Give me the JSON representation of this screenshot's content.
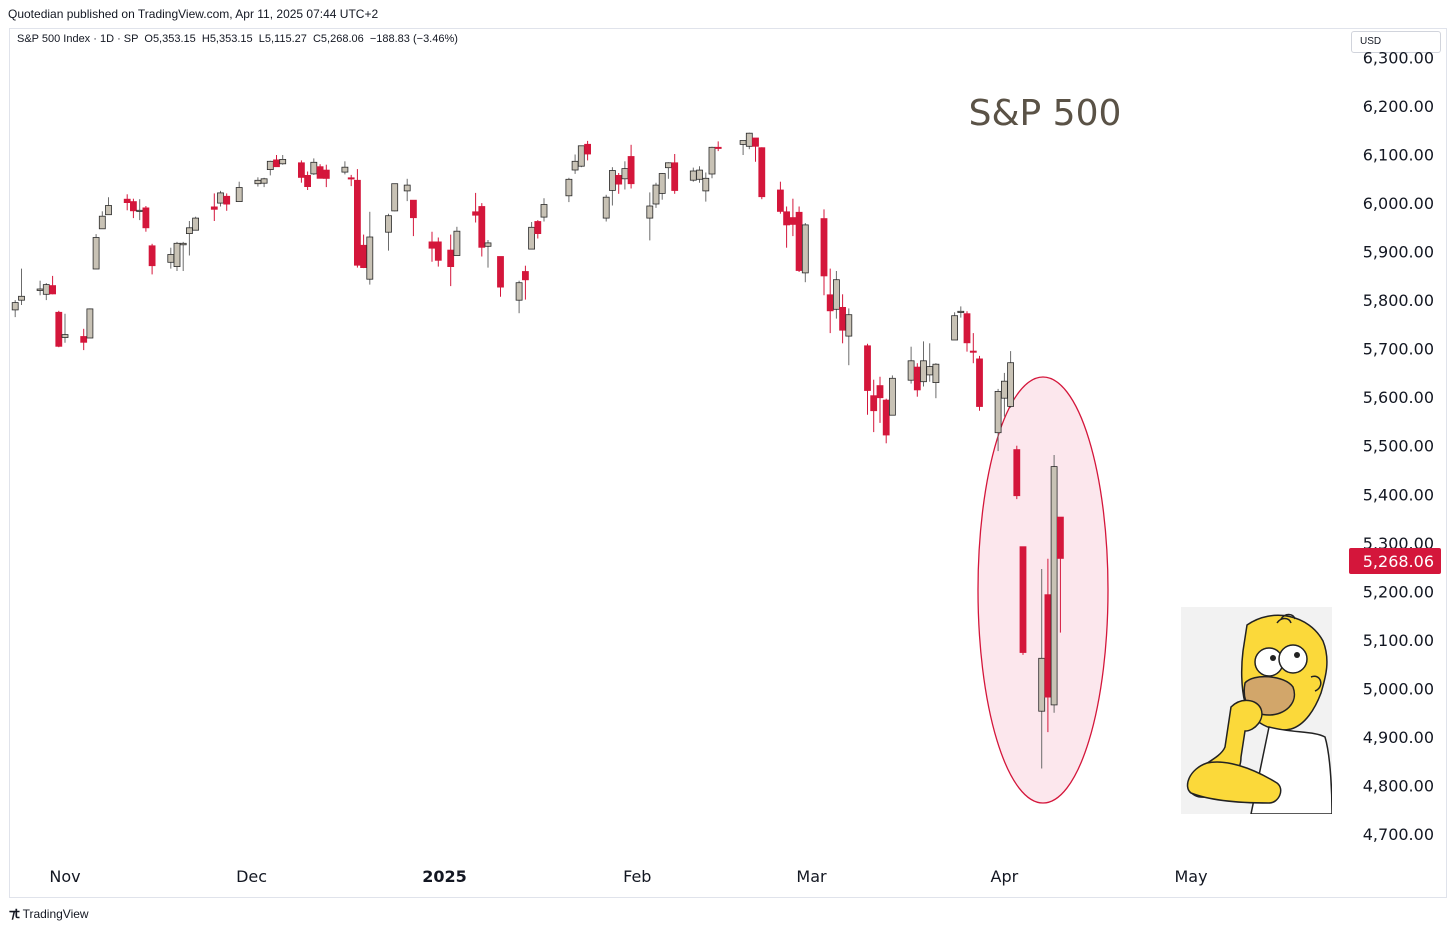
{
  "publisher_line": "Quotedian published on TradingView.com, Apr 11, 2025 07:44 UTC+2",
  "legend": "S&P 500 Index · 1D · SP  O5,353.15  H5,353.15  L5,115.27  C5,268.06  −188.83 (−3.46%)",
  "currency": "USD",
  "footer": "TradingView",
  "colors": {
    "up": "#c8c2b5",
    "down": "#d4163b",
    "text": "#131722",
    "title": "#5a5246"
  },
  "chart_data": {
    "type": "candlestick",
    "title": "S&P 500",
    "ylim": [
      4650,
      6320
    ],
    "y_ticks": [
      4700,
      4800,
      4900,
      5000,
      5100,
      5200,
      5300,
      5400,
      5500,
      5600,
      5700,
      5800,
      5900,
      6000,
      6100,
      6200,
      6300
    ],
    "y_tick_labels": [
      "4,700.00",
      "4,800.00",
      "4,900.00",
      "5,000.00",
      "5,100.00",
      "5,200.00",
      "5,300.00",
      "5,400.00",
      "5,500.00",
      "5,600.00",
      "5,700.00",
      "5,800.00",
      "5,900.00",
      "6,000.00",
      "6,100.00",
      "6,200.00",
      "6,300.00"
    ],
    "x_labels": [
      {
        "label": "Nov",
        "date": "2024-11-01"
      },
      {
        "label": "Dec",
        "date": "2024-12-01"
      },
      {
        "label": "2025",
        "date": "2025-01-01"
      },
      {
        "label": "Feb",
        "date": "2025-02-01"
      },
      {
        "label": "Mar",
        "date": "2025-03-01"
      },
      {
        "label": "Apr",
        "date": "2025-04-01"
      },
      {
        "label": "May",
        "date": "2025-05-01"
      }
    ],
    "last_price_label": "5,268.06",
    "highlight": "ellipse around Apr 2025 candles",
    "candles": [
      {
        "date": "2024-10-24",
        "o": 5780,
        "h": 5800,
        "l": 5765,
        "c": 5795
      },
      {
        "date": "2024-10-25",
        "o": 5800,
        "h": 5865,
        "l": 5790,
        "c": 5808
      },
      {
        "date": "2024-10-28",
        "o": 5820,
        "h": 5840,
        "l": 5810,
        "c": 5823
      },
      {
        "date": "2024-10-29",
        "o": 5812,
        "h": 5835,
        "l": 5800,
        "c": 5832
      },
      {
        "date": "2024-10-30",
        "o": 5830,
        "h": 5850,
        "l": 5812,
        "c": 5813
      },
      {
        "date": "2024-10-31",
        "o": 5775,
        "h": 5778,
        "l": 5703,
        "c": 5705
      },
      {
        "date": "2024-11-01",
        "o": 5723,
        "h": 5772,
        "l": 5712,
        "c": 5729
      },
      {
        "date": "2024-11-04",
        "o": 5725,
        "h": 5741,
        "l": 5697,
        "c": 5713
      },
      {
        "date": "2024-11-05",
        "o": 5722,
        "h": 5783,
        "l": 5722,
        "c": 5782
      },
      {
        "date": "2024-11-06",
        "o": 5864,
        "h": 5936,
        "l": 5864,
        "c": 5929
      },
      {
        "date": "2024-11-07",
        "o": 5947,
        "h": 5983,
        "l": 5947,
        "c": 5973
      },
      {
        "date": "2024-11-08",
        "o": 5976,
        "h": 6012,
        "l": 5976,
        "c": 5995
      },
      {
        "date": "2024-11-11",
        "o": 6008,
        "h": 6018,
        "l": 5985,
        "c": 6001
      },
      {
        "date": "2024-11-12",
        "o": 6003,
        "h": 6009,
        "l": 5969,
        "c": 5984
      },
      {
        "date": "2024-11-13",
        "o": 5985,
        "h": 6008,
        "l": 5965,
        "c": 5985
      },
      {
        "date": "2024-11-14",
        "o": 5990,
        "h": 5994,
        "l": 5941,
        "c": 5949
      },
      {
        "date": "2024-11-15",
        "o": 5912,
        "h": 5916,
        "l": 5853,
        "c": 5871
      },
      {
        "date": "2024-11-18",
        "o": 5878,
        "h": 5908,
        "l": 5865,
        "c": 5894
      },
      {
        "date": "2024-11-19",
        "o": 5869,
        "h": 5920,
        "l": 5860,
        "c": 5917
      },
      {
        "date": "2024-11-20",
        "o": 5914,
        "h": 5920,
        "l": 5860,
        "c": 5917
      },
      {
        "date": "2024-11-21",
        "o": 5937,
        "h": 5963,
        "l": 5892,
        "c": 5949
      },
      {
        "date": "2024-11-22",
        "o": 5944,
        "h": 5972,
        "l": 5944,
        "c": 5969
      },
      {
        "date": "2024-11-25",
        "o": 5992,
        "h": 6020,
        "l": 5963,
        "c": 5987
      },
      {
        "date": "2024-11-26",
        "o": 6000,
        "h": 6025,
        "l": 5993,
        "c": 6021
      },
      {
        "date": "2024-11-27",
        "o": 6014,
        "h": 6020,
        "l": 5984,
        "c": 5998
      },
      {
        "date": "2024-11-29",
        "o": 6003,
        "h": 6044,
        "l": 6003,
        "c": 6032
      },
      {
        "date": "2024-12-02",
        "o": 6040,
        "h": 6053,
        "l": 6034,
        "c": 6047
      },
      {
        "date": "2024-12-03",
        "o": 6041,
        "h": 6052,
        "l": 6033,
        "c": 6050
      },
      {
        "date": "2024-12-04",
        "o": 6069,
        "h": 6087,
        "l": 6057,
        "c": 6086
      },
      {
        "date": "2024-12-05",
        "o": 6089,
        "h": 6099,
        "l": 6075,
        "c": 6075
      },
      {
        "date": "2024-12-06",
        "o": 6081,
        "h": 6099,
        "l": 6079,
        "c": 6090
      },
      {
        "date": "2024-12-09",
        "o": 6083,
        "h": 6088,
        "l": 6042,
        "c": 6053
      },
      {
        "date": "2024-12-10",
        "o": 6057,
        "h": 6065,
        "l": 6027,
        "c": 6034
      },
      {
        "date": "2024-12-11",
        "o": 6060,
        "h": 6092,
        "l": 6058,
        "c": 6084
      },
      {
        "date": "2024-12-12",
        "o": 6075,
        "h": 6080,
        "l": 6051,
        "c": 6051
      },
      {
        "date": "2024-12-13",
        "o": 6068,
        "h": 6079,
        "l": 6033,
        "c": 6051
      },
      {
        "date": "2024-12-16",
        "o": 6064,
        "h": 6086,
        "l": 6059,
        "c": 6074
      },
      {
        "date": "2024-12-17",
        "o": 6052,
        "h": 6058,
        "l": 6035,
        "c": 6050
      },
      {
        "date": "2024-12-18",
        "o": 6047,
        "h": 6070,
        "l": 5867,
        "c": 5872
      },
      {
        "date": "2024-12-19",
        "o": 5913,
        "h": 5935,
        "l": 5866,
        "c": 5867
      },
      {
        "date": "2024-12-20",
        "o": 5843,
        "h": 5982,
        "l": 5832,
        "c": 5930
      },
      {
        "date": "2024-12-23",
        "o": 5940,
        "h": 5978,
        "l": 5902,
        "c": 5974
      },
      {
        "date": "2024-12-24",
        "o": 5984,
        "h": 6040,
        "l": 5983,
        "c": 6040
      },
      {
        "date": "2024-12-26",
        "o": 6025,
        "h": 6050,
        "l": 6004,
        "c": 6037
      },
      {
        "date": "2024-12-27",
        "o": 6006,
        "h": 6006,
        "l": 5932,
        "c": 5970
      },
      {
        "date": "2024-12-30",
        "o": 5920,
        "h": 5941,
        "l": 5879,
        "c": 5907
      },
      {
        "date": "2024-12-31",
        "o": 5920,
        "h": 5929,
        "l": 5869,
        "c": 5882
      },
      {
        "date": "2025-01-02",
        "o": 5903,
        "h": 5935,
        "l": 5829,
        "c": 5869
      },
      {
        "date": "2025-01-03",
        "o": 5892,
        "h": 5951,
        "l": 5892,
        "c": 5942
      },
      {
        "date": "2025-01-06",
        "o": 5982,
        "h": 6021,
        "l": 5960,
        "c": 5975
      },
      {
        "date": "2025-01-07",
        "o": 5993,
        "h": 6000,
        "l": 5890,
        "c": 5909
      },
      {
        "date": "2025-01-08",
        "o": 5911,
        "h": 5924,
        "l": 5867,
        "c": 5918
      },
      {
        "date": "2025-01-10",
        "o": 5890,
        "h": 5890,
        "l": 5807,
        "c": 5827
      },
      {
        "date": "2025-01-13",
        "o": 5800,
        "h": 5840,
        "l": 5773,
        "c": 5836
      },
      {
        "date": "2025-01-14",
        "o": 5859,
        "h": 5871,
        "l": 5801,
        "c": 5842
      },
      {
        "date": "2025-01-15",
        "o": 5905,
        "h": 5961,
        "l": 5905,
        "c": 5950
      },
      {
        "date": "2025-01-16",
        "o": 5962,
        "h": 5965,
        "l": 5927,
        "c": 5937
      },
      {
        "date": "2025-01-17",
        "o": 5971,
        "h": 6010,
        "l": 5962,
        "c": 5997
      },
      {
        "date": "2025-01-21",
        "o": 6015,
        "h": 6052,
        "l": 6002,
        "c": 6049
      },
      {
        "date": "2025-01-22",
        "o": 6068,
        "h": 6100,
        "l": 6060,
        "c": 6086
      },
      {
        "date": "2025-01-23",
        "o": 6076,
        "h": 6118,
        "l": 6074,
        "c": 6118
      },
      {
        "date": "2025-01-24",
        "o": 6121,
        "h": 6128,
        "l": 6088,
        "c": 6101
      },
      {
        "date": "2025-01-27",
        "o": 5969,
        "h": 6017,
        "l": 5962,
        "c": 6012
      },
      {
        "date": "2025-01-28",
        "o": 6026,
        "h": 6074,
        "l": 5995,
        "c": 6067
      },
      {
        "date": "2025-01-29",
        "o": 6057,
        "h": 6062,
        "l": 6019,
        "c": 6039
      },
      {
        "date": "2025-01-30",
        "o": 6050,
        "h": 6086,
        "l": 6028,
        "c": 6071
      },
      {
        "date": "2025-01-31",
        "o": 6096,
        "h": 6120,
        "l": 6030,
        "c": 6040
      },
      {
        "date": "2025-02-03",
        "o": 5969,
        "h": 6022,
        "l": 5923,
        "c": 5994
      },
      {
        "date": "2025-02-04",
        "o": 5998,
        "h": 6042,
        "l": 5990,
        "c": 6037
      },
      {
        "date": "2025-02-05",
        "o": 6020,
        "h": 6062,
        "l": 6007,
        "c": 6061
      },
      {
        "date": "2025-02-06",
        "o": 6073,
        "h": 6084,
        "l": 6050,
        "c": 6083
      },
      {
        "date": "2025-02-07",
        "o": 6083,
        "h": 6101,
        "l": 6019,
        "c": 6026
      },
      {
        "date": "2025-02-10",
        "o": 6047,
        "h": 6073,
        "l": 6044,
        "c": 6066
      },
      {
        "date": "2025-02-11",
        "o": 6049,
        "h": 6076,
        "l": 6042,
        "c": 6068
      },
      {
        "date": "2025-02-12",
        "o": 6025,
        "h": 6063,
        "l": 6003,
        "c": 6051
      },
      {
        "date": "2025-02-13",
        "o": 6060,
        "h": 6116,
        "l": 6051,
        "c": 6115
      },
      {
        "date": "2025-02-14",
        "o": 6115,
        "h": 6127,
        "l": 6107,
        "c": 6114
      },
      {
        "date": "2025-02-18",
        "o": 6121,
        "h": 6129,
        "l": 6099,
        "c": 6129
      },
      {
        "date": "2025-02-19",
        "o": 6117,
        "h": 6145,
        "l": 6111,
        "c": 6144
      },
      {
        "date": "2025-02-20",
        "o": 6134,
        "h": 6134,
        "l": 6085,
        "c": 6117
      },
      {
        "date": "2025-02-21",
        "o": 6114,
        "h": 6115,
        "l": 6008,
        "c": 6013
      },
      {
        "date": "2025-02-24",
        "o": 6027,
        "h": 6044,
        "l": 5978,
        "c": 5983
      },
      {
        "date": "2025-02-25",
        "o": 5982,
        "h": 5993,
        "l": 5908,
        "c": 5955
      },
      {
        "date": "2025-02-26",
        "o": 5970,
        "h": 6009,
        "l": 5932,
        "c": 5956
      },
      {
        "date": "2025-02-27",
        "o": 5981,
        "h": 5993,
        "l": 5858,
        "c": 5861
      },
      {
        "date": "2025-02-28",
        "o": 5856,
        "h": 5959,
        "l": 5837,
        "c": 5955
      },
      {
        "date": "2025-03-03",
        "o": 5968,
        "h": 5987,
        "l": 5810,
        "c": 5850
      },
      {
        "date": "2025-03-04",
        "o": 5811,
        "h": 5865,
        "l": 5732,
        "c": 5778
      },
      {
        "date": "2025-03-05",
        "o": 5781,
        "h": 5860,
        "l": 5762,
        "c": 5842
      },
      {
        "date": "2025-03-06",
        "o": 5785,
        "h": 5812,
        "l": 5711,
        "c": 5738
      },
      {
        "date": "2025-03-07",
        "o": 5726,
        "h": 5783,
        "l": 5666,
        "c": 5770
      },
      {
        "date": "2025-03-10",
        "o": 5706,
        "h": 5710,
        "l": 5564,
        "c": 5614
      },
      {
        "date": "2025-03-11",
        "o": 5603,
        "h": 5636,
        "l": 5528,
        "c": 5572
      },
      {
        "date": "2025-03-12",
        "o": 5624,
        "h": 5642,
        "l": 5547,
        "c": 5599
      },
      {
        "date": "2025-03-13",
        "o": 5594,
        "h": 5597,
        "l": 5505,
        "c": 5522
      },
      {
        "date": "2025-03-14",
        "o": 5563,
        "h": 5645,
        "l": 5563,
        "c": 5639
      },
      {
        "date": "2025-03-17",
        "o": 5635,
        "h": 5704,
        "l": 5628,
        "c": 5675
      },
      {
        "date": "2025-03-18",
        "o": 5662,
        "h": 5670,
        "l": 5601,
        "c": 5615
      },
      {
        "date": "2025-03-19",
        "o": 5632,
        "h": 5715,
        "l": 5622,
        "c": 5675
      },
      {
        "date": "2025-03-20",
        "o": 5646,
        "h": 5711,
        "l": 5632,
        "c": 5663
      },
      {
        "date": "2025-03-21",
        "o": 5630,
        "h": 5670,
        "l": 5598,
        "c": 5668
      },
      {
        "date": "2025-03-24",
        "o": 5718,
        "h": 5775,
        "l": 5718,
        "c": 5768
      },
      {
        "date": "2025-03-25",
        "o": 5775,
        "h": 5787,
        "l": 5764,
        "c": 5777
      },
      {
        "date": "2025-03-26",
        "o": 5772,
        "h": 5777,
        "l": 5694,
        "c": 5712
      },
      {
        "date": "2025-03-27",
        "o": 5695,
        "h": 5732,
        "l": 5670,
        "c": 5693
      },
      {
        "date": "2025-03-28",
        "o": 5679,
        "h": 5685,
        "l": 5572,
        "c": 5581
      },
      {
        "date": "2025-03-31",
        "o": 5527,
        "h": 5617,
        "l": 5489,
        "c": 5612
      },
      {
        "date": "2025-04-01",
        "o": 5598,
        "h": 5650,
        "l": 5560,
        "c": 5633
      },
      {
        "date": "2025-04-02",
        "o": 5581,
        "h": 5695,
        "l": 5578,
        "c": 5671
      },
      {
        "date": "2025-04-03",
        "o": 5492,
        "h": 5500,
        "l": 5390,
        "c": 5397
      },
      {
        "date": "2025-04-04",
        "o": 5292,
        "h": 5292,
        "l": 5069,
        "c": 5074
      },
      {
        "date": "2025-04-07",
        "o": 4953,
        "h": 5246,
        "l": 4835,
        "c": 5062
      },
      {
        "date": "2025-04-08",
        "o": 5193,
        "h": 5267,
        "l": 4910,
        "c": 4982
      },
      {
        "date": "2025-04-09",
        "o": 4966,
        "h": 5481,
        "l": 4950,
        "c": 5457
      },
      {
        "date": "2025-04-10",
        "o": 5353,
        "h": 5353,
        "l": 5115,
        "c": 5268
      }
    ]
  }
}
